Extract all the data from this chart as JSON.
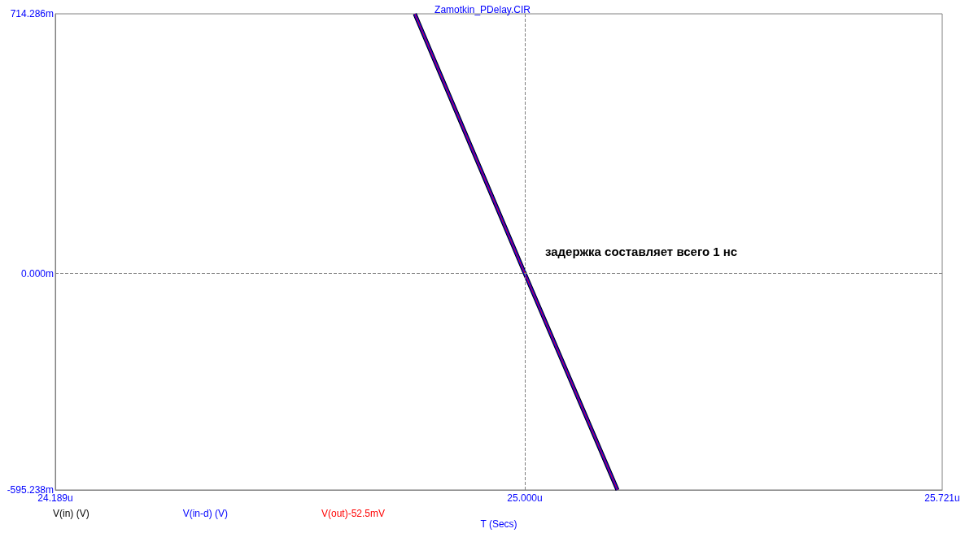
{
  "chart_data": {
    "type": "line",
    "title": "Zamotkin_PDelay.CIR",
    "xlabel": "T (Secs)",
    "x": [
      24.81,
      25.0,
      25.16
    ],
    "series": [
      {
        "name": "V(in) (V)",
        "color": "#000000",
        "values": [
          714,
          0,
          -595
        ]
      },
      {
        "name": "V(in-d) (V)",
        "color": "#0000ff",
        "values": [
          714,
          0,
          -595
        ]
      },
      {
        "name": "V(out)-52.5mV",
        "color": "#ff0000",
        "values": [
          714,
          0,
          -595
        ]
      }
    ],
    "xlim": [
      24.189,
      25.721
    ],
    "xticks": [
      {
        "value": 24.189,
        "label": "24.189u"
      },
      {
        "value": 25.0,
        "label": "25.000u"
      },
      {
        "value": 25.721,
        "label": "25.721u"
      }
    ],
    "ylim": [
      -595.238,
      714.286
    ],
    "yticks": [
      {
        "value": -595.238,
        "label": "-595.238m"
      },
      {
        "value": 0,
        "label": "0.000m"
      },
      {
        "value": 714.286,
        "label": "714.286m"
      }
    ],
    "ref_lines": [
      {
        "axis": "x",
        "value": 25.0,
        "color": "#808080",
        "line_style": "dashed"
      },
      {
        "axis": "y",
        "value": 0,
        "color": "#808080",
        "line_style": "dashed"
      }
    ],
    "line_style": "solid",
    "marker": "none",
    "legend": "bottom left",
    "annotations": [
      "задержка составляет всего 1 нс"
    ]
  }
}
